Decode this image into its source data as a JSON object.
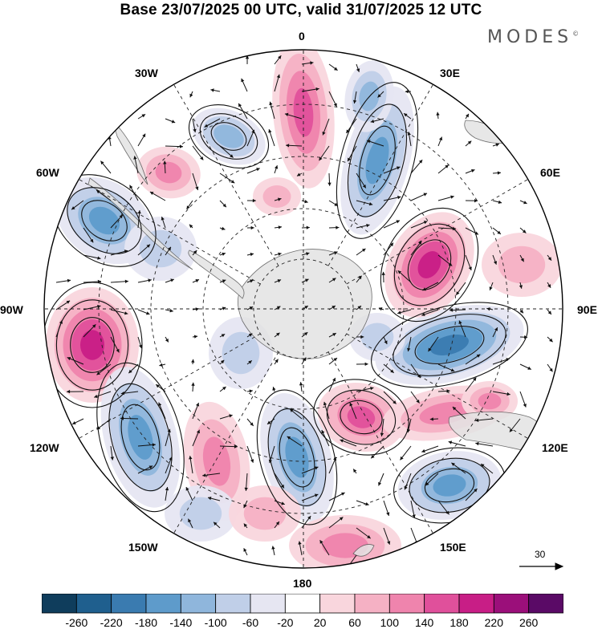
{
  "header": {
    "title": "Base 23/07/2025 00 UTC, valid 31/07/2025 12 UTC",
    "brand": "MODES",
    "brand_mark": "©"
  },
  "map": {
    "projection": "south polar stereographic",
    "longitude_labels": {
      "deg0": "0",
      "e30": "30E",
      "e60": "60E",
      "e90": "90E",
      "e120": "120E",
      "e150": "150E",
      "deg180": "180",
      "w150": "150W",
      "w120": "120W",
      "w90": "90W",
      "w60": "60W",
      "w30": "30W"
    },
    "reference_vector": "30"
  },
  "colorbar": {
    "labels": [
      "-260",
      "-220",
      "-180",
      "-140",
      "-100",
      "-60",
      "-20",
      "20",
      "60",
      "100",
      "140",
      "180",
      "220",
      "260"
    ],
    "colors": [
      "#0f3d5c",
      "#1f5f8e",
      "#3a7bb0",
      "#5e9bcb",
      "#8fb6dc",
      "#c0cfe8",
      "#e6e6f2",
      "#ffffff",
      "#f9d6dd",
      "#f5b1c4",
      "#ef84ad",
      "#e0509b",
      "#c81e86",
      "#9b0f7a",
      "#5a0a66"
    ]
  },
  "colors": {
    "positive": "#e0509b",
    "negative": "#3a7bb0",
    "land": "#e3e3e3"
  }
}
